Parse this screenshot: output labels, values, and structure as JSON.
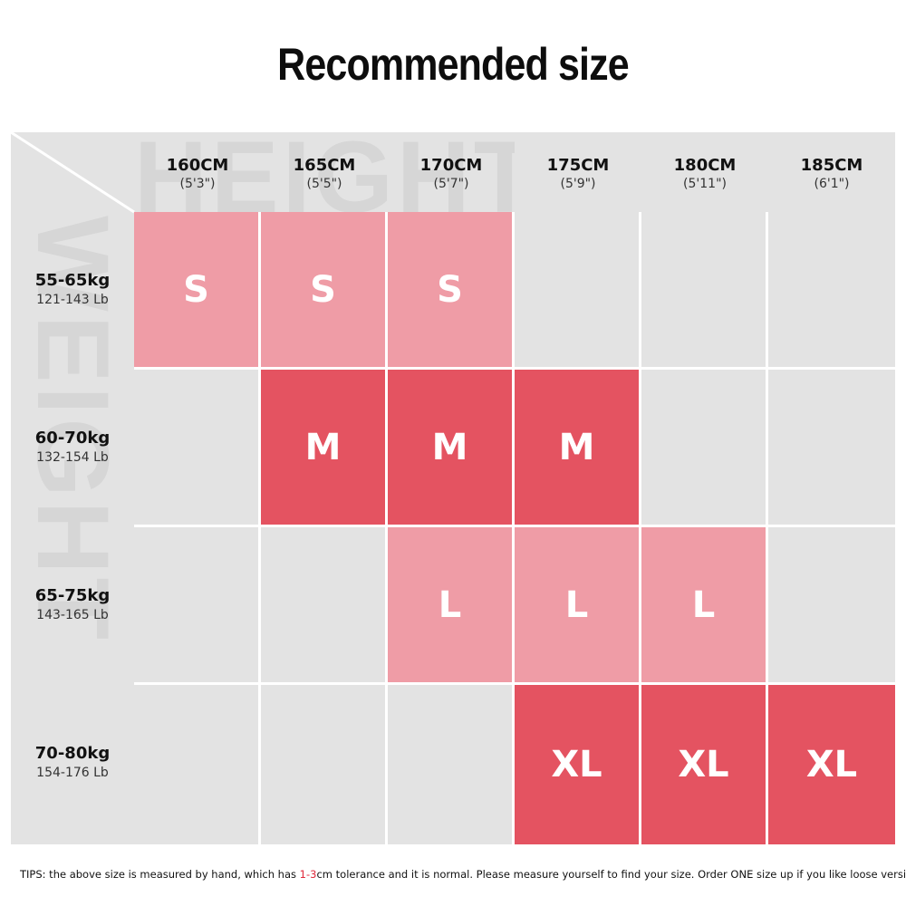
{
  "title": "Recommended size",
  "watermarks": {
    "height": "HEIGHT",
    "weight": "WEIGHT"
  },
  "columns": [
    {
      "cm": "160CM",
      "inch": "(5'3\")"
    },
    {
      "cm": "165CM",
      "inch": "(5'5\")"
    },
    {
      "cm": "170CM",
      "inch": "(5'7\")"
    },
    {
      "cm": "175CM",
      "inch": "(5'9\")"
    },
    {
      "cm": "180CM",
      "inch": "(5'11\")"
    },
    {
      "cm": "185CM",
      "inch": "(6'1\")"
    }
  ],
  "rows": [
    {
      "kg": "55-65kg",
      "lb": "121-143 Lb",
      "cells": [
        "S",
        "S",
        "S",
        "",
        "",
        ""
      ]
    },
    {
      "kg": "60-70kg",
      "lb": "132-154 Lb",
      "cells": [
        "",
        "M",
        "M",
        "M",
        "",
        ""
      ]
    },
    {
      "kg": "65-75kg",
      "lb": "143-165 Lb",
      "cells": [
        "",
        "",
        "L",
        "L",
        "L",
        ""
      ]
    },
    {
      "kg": "70-80kg",
      "lb": "154-176 Lb",
      "cells": [
        "",
        "",
        "",
        "XL",
        "XL",
        "XL"
      ]
    }
  ],
  "colors": {
    "light_pink": "#ef9ca6",
    "dark_red": "#e45361",
    "empty_cell": "#e3e3e3",
    "tip_highlight": "#e0293b"
  },
  "tips": {
    "prefix": "TIPS:  the above size is measured by hand, which has ",
    "highlight": "1-3",
    "suffix": "cm tolerance and it is normal. Please measure yourself to find your size. Order ONE size up if you like loose version."
  }
}
